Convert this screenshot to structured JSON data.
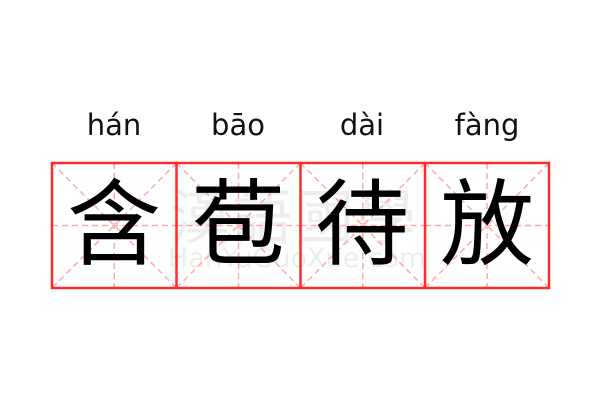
{
  "word": {
    "pinyin": [
      "hán",
      "bāo",
      "dài",
      "fàng"
    ],
    "characters": [
      "含",
      "苞",
      "待",
      "放"
    ]
  },
  "watermark": {
    "chinese": "漢語國學",
    "latin": "HanYuGuoXue.com"
  },
  "colors": {
    "border": "#ff2a2a",
    "guide": "#ffaaaa",
    "text": "#000000"
  }
}
